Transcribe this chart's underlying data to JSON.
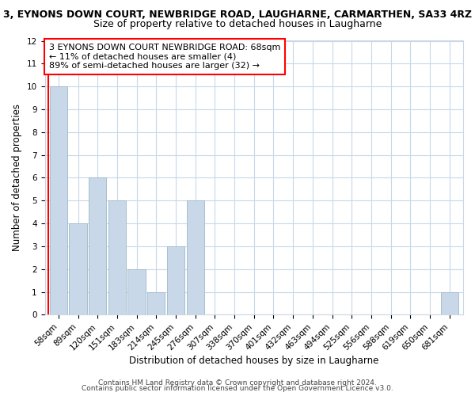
{
  "title_line1": "3, EYNONS DOWN COURT, NEWBRIDGE ROAD, LAUGHARNE, CARMARTHEN, SA33 4RZ",
  "title_line2": "Size of property relative to detached houses in Laugharne",
  "xlabel": "Distribution of detached houses by size in Laugharne",
  "ylabel": "Number of detached properties",
  "bar_labels": [
    "58sqm",
    "89sqm",
    "120sqm",
    "151sqm",
    "183sqm",
    "214sqm",
    "245sqm",
    "276sqm",
    "307sqm",
    "338sqm",
    "370sqm",
    "401sqm",
    "432sqm",
    "463sqm",
    "494sqm",
    "525sqm",
    "556sqm",
    "588sqm",
    "619sqm",
    "650sqm",
    "681sqm"
  ],
  "bar_values": [
    10,
    4,
    6,
    5,
    2,
    1,
    3,
    5,
    0,
    0,
    0,
    0,
    0,
    0,
    0,
    0,
    0,
    0,
    0,
    0,
    1
  ],
  "bar_color": "#c8d8e8",
  "bar_edge_color": "#a8bece",
  "annotation_box_text": "3 EYNONS DOWN COURT NEWBRIDGE ROAD: 68sqm\n← 11% of detached houses are smaller (4)\n89% of semi-detached houses are larger (32) →",
  "annotation_box_color": "white",
  "annotation_box_edge_color": "red",
  "vline_color": "red",
  "ylim": [
    0,
    12
  ],
  "yticks": [
    0,
    1,
    2,
    3,
    4,
    5,
    6,
    7,
    8,
    9,
    10,
    11,
    12
  ],
  "footer_line1": "Contains HM Land Registry data © Crown copyright and database right 2024.",
  "footer_line2": "Contains public sector information licensed under the Open Government Licence v3.0.",
  "grid_color": "#c8d8e8",
  "title_fontsize": 9,
  "subtitle_fontsize": 9,
  "axis_label_fontsize": 8.5,
  "tick_fontsize": 7.5,
  "annotation_fontsize": 8,
  "footer_fontsize": 6.5
}
